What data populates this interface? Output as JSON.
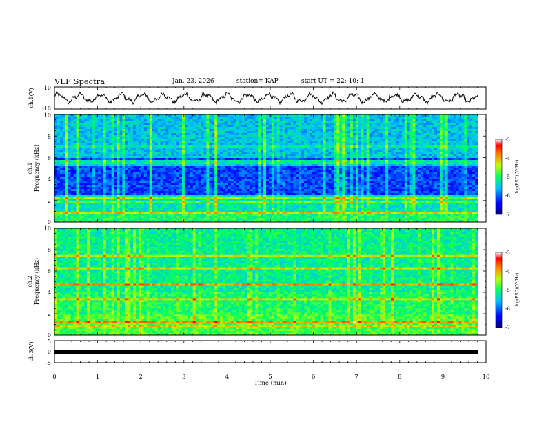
{
  "header": {
    "title": "VLF Spectra",
    "date": "Jan. 23, 2026",
    "station": "station= KAP",
    "start_ut": "start  UT =   22: 10: 1"
  },
  "colors": {
    "axis": "#000000",
    "trace": "#000000",
    "background": "#ffffff"
  },
  "chart_data": [
    {
      "type": "line",
      "id": "ch1-voltage",
      "ylabel": "ch.1(V)",
      "ylim": [
        -10,
        10
      ],
      "yticks": [
        "10",
        "-10"
      ],
      "xlim": [
        0,
        10
      ],
      "description_series": "oscillating waveform, ~20 cycles over 10 min, amplitude ~6 V"
    },
    {
      "type": "heatmap",
      "id": "ch1-spectrogram",
      "ylabel_top": "ch.1",
      "ylabel": "Frequency (kHz)",
      "ylim": [
        0,
        10
      ],
      "yticks": [
        "0",
        "2",
        "4",
        "6",
        "8",
        "10"
      ],
      "xlim": [
        0,
        10
      ],
      "colorbar": {
        "label": "log(PSD)(V²/Hz)",
        "range": [
          -7,
          -3
        ],
        "ticks": [
          "-3",
          "-4",
          "-5",
          "-6",
          "-7"
        ]
      }
    },
    {
      "type": "heatmap",
      "id": "ch2-spectrogram",
      "ylabel_top": "ch.2",
      "ylabel": "Frequency (kHz)",
      "ylim": [
        0,
        10
      ],
      "yticks": [
        "0",
        "2",
        "4",
        "6",
        "8",
        "10"
      ],
      "xlim": [
        0,
        10
      ],
      "colorbar": {
        "label": "log(PSD)(V²/Hz)",
        "range": [
          -7,
          -3
        ],
        "ticks": [
          "-3",
          "-4",
          "-5",
          "-6",
          "-7"
        ]
      }
    },
    {
      "type": "line",
      "id": "ch3-voltage",
      "ylabel": "ch.3(V)",
      "ylim": [
        -5,
        5
      ],
      "yticks": [
        "5",
        "0",
        "-5"
      ],
      "xlim": [
        0,
        10
      ],
      "level": -0.5
    }
  ],
  "xaxis": {
    "label": "Time (min)",
    "ticks": [
      "0",
      "1",
      "2",
      "3",
      "4",
      "5",
      "6",
      "7",
      "8",
      "9",
      "10"
    ]
  }
}
